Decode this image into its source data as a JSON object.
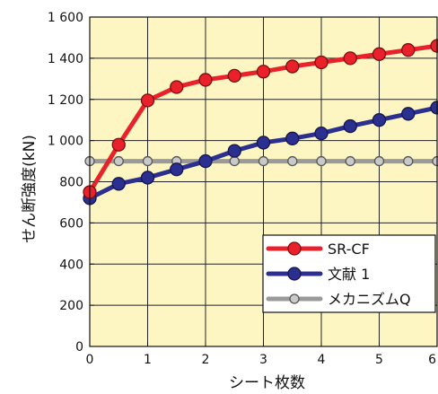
{
  "chart_data": {
    "type": "line",
    "xlabel": "シート枚数",
    "ylabel": "せん断強度(kN)",
    "xlim": [
      0,
      6
    ],
    "ylim": [
      0,
      1600
    ],
    "x_ticks": [
      "0",
      "1",
      "2",
      "3",
      "4",
      "5",
      "6"
    ],
    "y_ticks": [
      "0",
      "200",
      "400",
      "600",
      "800",
      "1 000",
      "1 200",
      "1 400",
      "1 600"
    ],
    "grid": true,
    "legend_position": "bottom-right",
    "background_color": "#fdf6c3",
    "series": [
      {
        "name": "SR-CF",
        "color": "#e8212a",
        "x": [
          0,
          0.5,
          1,
          1.5,
          2,
          2.5,
          3,
          3.5,
          4,
          4.5,
          5,
          5.5,
          6
        ],
        "values": [
          750,
          980,
          1195,
          1260,
          1295,
          1315,
          1335,
          1360,
          1380,
          1400,
          1420,
          1440,
          1460
        ]
      },
      {
        "name": "文献 1",
        "color": "#2b2f8f",
        "x": [
          0,
          0.5,
          1,
          1.5,
          2,
          2.5,
          3,
          3.5,
          4,
          4.5,
          5,
          5.5,
          6
        ],
        "values": [
          720,
          790,
          820,
          860,
          900,
          950,
          990,
          1010,
          1035,
          1070,
          1100,
          1130,
          1160
        ]
      },
      {
        "name": "メカニズムQ",
        "color": "#9a9a9a",
        "x": [
          0,
          0.5,
          1,
          1.5,
          2,
          2.5,
          3,
          3.5,
          4,
          4.5,
          5,
          5.5,
          6
        ],
        "values": [
          900,
          900,
          900,
          900,
          900,
          900,
          900,
          900,
          900,
          900,
          900,
          900,
          900
        ]
      }
    ]
  }
}
